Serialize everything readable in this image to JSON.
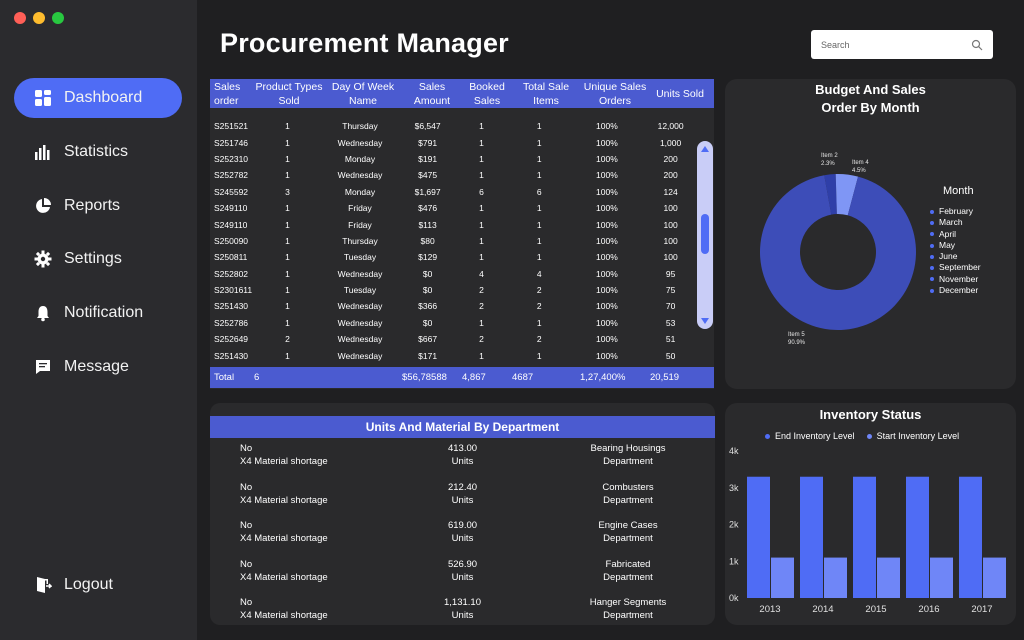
{
  "sidebar": {
    "window_controls": [
      "#ff5f57",
      "#febc2e",
      "#28c840"
    ],
    "items": [
      {
        "label": "Dashboard",
        "icon": "dashboard-icon",
        "active": true
      },
      {
        "label": "Statistics",
        "icon": "bar-chart-icon",
        "active": false
      },
      {
        "label": "Reports",
        "icon": "pie-chart-icon",
        "active": false
      },
      {
        "label": "Settings",
        "icon": "gear-icon",
        "active": false
      },
      {
        "label": "Notification",
        "icon": "bell-icon",
        "active": false
      },
      {
        "label": "Message",
        "icon": "message-icon",
        "active": false
      }
    ],
    "logout": {
      "label": "Logout",
      "icon": "logout-icon"
    }
  },
  "header": {
    "title": "Procurement Manager",
    "search_placeholder": "Search"
  },
  "colors": {
    "accent": "#4f6cf5",
    "table_header": "#4b5bd0",
    "bar_end": "#4f6cf5",
    "bar_start": "#6f86f7",
    "donut_main": "#3d4db8"
  },
  "sales_table": {
    "columns": [
      "Sales order",
      "Product Types Sold",
      "Day Of Week Name",
      "Sales Amount",
      "Booked Sales",
      "Total Sale Items",
      "Unique Sales Orders",
      "Units Sold"
    ],
    "rows": [
      [
        "S251521",
        "1",
        "Thursday",
        "$6,547",
        "1",
        "1",
        "100%",
        "12,000"
      ],
      [
        "S251746",
        "1",
        "Wednesday",
        "$791",
        "1",
        "1",
        "100%",
        "1,000"
      ],
      [
        "S252310",
        "1",
        "Monday",
        "$191",
        "1",
        "1",
        "100%",
        "200"
      ],
      [
        "S252782",
        "1",
        "Wednesday",
        "$475",
        "1",
        "1",
        "100%",
        "200"
      ],
      [
        "S245592",
        "3",
        "Monday",
        "$1,697",
        "6",
        "6",
        "100%",
        "124"
      ],
      [
        "S249110",
        "1",
        "Friday",
        "$476",
        "1",
        "1",
        "100%",
        "100"
      ],
      [
        "S249110",
        "1",
        "Friday",
        "$113",
        "1",
        "1",
        "100%",
        "100"
      ],
      [
        "S250090",
        "1",
        "Thursday",
        "$80",
        "1",
        "1",
        "100%",
        "100"
      ],
      [
        "S250811",
        "1",
        "Tuesday",
        "$129",
        "1",
        "1",
        "100%",
        "100"
      ],
      [
        "S252802",
        "1",
        "Wednesday",
        "$0",
        "4",
        "4",
        "100%",
        "95"
      ],
      [
        "S2301611",
        "1",
        "Tuesday",
        "$0",
        "2",
        "2",
        "100%",
        "75"
      ],
      [
        "S251430",
        "1",
        "Wednesday",
        "$366",
        "2",
        "2",
        "100%",
        "70"
      ],
      [
        "S252786",
        "1",
        "Wednesday",
        "$0",
        "1",
        "1",
        "100%",
        "53"
      ],
      [
        "S252649",
        "2",
        "Wednesday",
        "$667",
        "2",
        "2",
        "100%",
        "51"
      ],
      [
        "S251430",
        "1",
        "Wednesday",
        "$171",
        "1",
        "1",
        "100%",
        "50"
      ]
    ],
    "total": [
      "Total",
      "6",
      "",
      "$56,78588",
      "4,867",
      "4687",
      "1,27,400%",
      "20,519"
    ]
  },
  "budget_panel": {
    "title_line1": "Budget And Sales",
    "title_line2": "Order By Month",
    "legend_title": "Month",
    "legend": [
      "February",
      "March",
      "April",
      "May",
      "June",
      "September",
      "November",
      "December"
    ],
    "labels": {
      "item2_name": "Item 2",
      "item2_pct": "2.3%",
      "item4_name": "Item 4",
      "item4_pct": "4.5%",
      "item5_name": "Item 5",
      "item5_pct": "90.9%"
    }
  },
  "units_panel": {
    "title": "Units And Material By Department",
    "rows": [
      {
        "status": "No",
        "material": "X4 Material shortage",
        "value": "413.00",
        "unit": "Units",
        "dept": "Bearing Housings",
        "dept_suffix": "Department"
      },
      {
        "status": "No",
        "material": "X4 Material shortage",
        "value": "212.40",
        "unit": "Units",
        "dept": "Combusters",
        "dept_suffix": "Department"
      },
      {
        "status": "No",
        "material": "X4 Material shortage",
        "value": "619.00",
        "unit": "Units",
        "dept": "Engine Cases",
        "dept_suffix": "Department"
      },
      {
        "status": "No",
        "material": "X4 Material shortage",
        "value": "526.90",
        "unit": "Units",
        "dept": "Fabricated",
        "dept_suffix": "Department"
      },
      {
        "status": "No",
        "material": "X4 Material shortage",
        "value": "1,131.10",
        "unit": "Units",
        "dept": "Hanger Segments",
        "dept_suffix": "Department"
      }
    ]
  },
  "inventory_panel": {
    "title": "Inventory Status",
    "legend_end": "End Inventory Level",
    "legend_start": "Start Inventory Level"
  },
  "chart_data": [
    {
      "type": "pie",
      "subtype": "donut",
      "title": "Budget And Sales Order By Month",
      "labels": [
        "Item 5",
        "Item 2",
        "Item 4"
      ],
      "values": [
        90.9,
        2.3,
        4.5
      ],
      "legend_placement": "right"
    },
    {
      "type": "bar",
      "title": "Inventory Status",
      "categories": [
        "2013",
        "2014",
        "2015",
        "2016",
        "2017"
      ],
      "series": [
        {
          "name": "End Inventory Level",
          "values": [
            3300,
            3300,
            3300,
            3300,
            3300
          ]
        },
        {
          "name": "Start Inventory Level",
          "values": [
            1100,
            1100,
            1100,
            1100,
            1100
          ]
        }
      ],
      "ylim": [
        0,
        4000
      ],
      "yticks": [
        "0k",
        "1k",
        "2k",
        "3k",
        "4k"
      ],
      "grid": false,
      "legend_placement": "top"
    }
  ]
}
